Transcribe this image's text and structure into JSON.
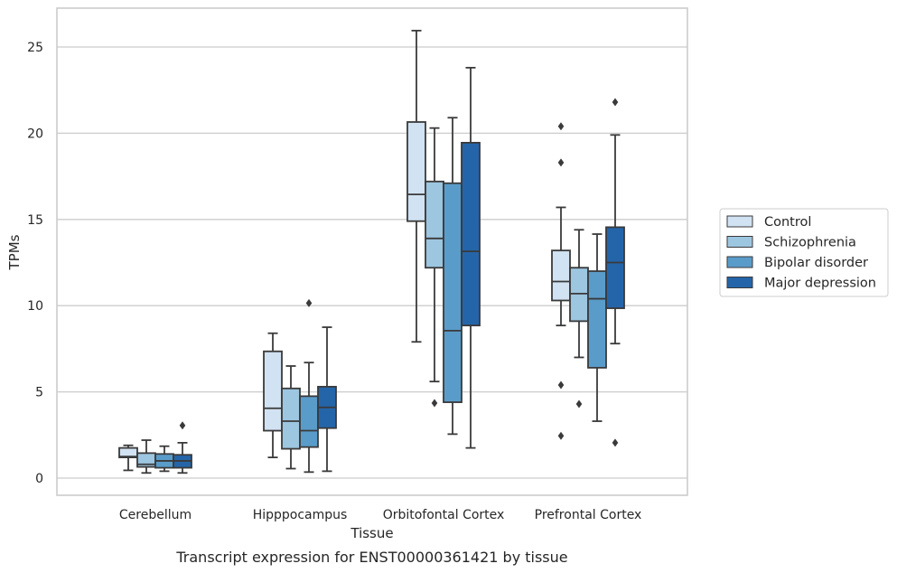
{
  "chart_data": {
    "type": "boxplot",
    "caption": "Transcript expression for ENST00000361421 by tissue",
    "xlabel": "Tissue",
    "ylabel": "TPMs",
    "ylim": [
      -1,
      27
    ],
    "yticks": [
      0,
      5,
      10,
      15,
      20,
      25
    ],
    "grid": "horizontal",
    "legend_position": "right",
    "categories": [
      "Cerebellum",
      "Hipppocampus",
      "Orbitofontal Cortex",
      "Prefrontal Cortex"
    ],
    "series": [
      {
        "name": "Control",
        "color": "#d1e2f2",
        "boxes": [
          {
            "whislo": 0.45,
            "q1": 1.2,
            "med": 1.25,
            "q3": 1.75,
            "whishi": 1.9,
            "fliers": []
          },
          {
            "whislo": 1.2,
            "q1": 2.75,
            "med": 4.05,
            "q3": 7.35,
            "whishi": 8.4,
            "fliers": []
          },
          {
            "whislo": 7.9,
            "q1": 14.9,
            "med": 16.45,
            "q3": 20.65,
            "whishi": 25.95,
            "fliers": []
          },
          {
            "whislo": 8.85,
            "q1": 10.3,
            "med": 11.4,
            "q3": 13.2,
            "whishi": 15.7,
            "fliers": [
              20.4,
              18.3,
              5.4,
              2.45
            ]
          }
        ]
      },
      {
        "name": "Schizophrenia",
        "color": "#9dc6e0",
        "boxes": [
          {
            "whislo": 0.3,
            "q1": 0.65,
            "med": 0.8,
            "q3": 1.45,
            "whishi": 2.2,
            "fliers": []
          },
          {
            "whislo": 0.55,
            "q1": 1.7,
            "med": 3.3,
            "q3": 5.2,
            "whishi": 6.5,
            "fliers": []
          },
          {
            "whislo": 5.6,
            "q1": 12.2,
            "med": 13.9,
            "q3": 17.2,
            "whishi": 20.3,
            "fliers": [
              4.35
            ]
          },
          {
            "whislo": 7.0,
            "q1": 9.1,
            "med": 10.7,
            "q3": 12.2,
            "whishi": 14.4,
            "fliers": [
              4.3
            ]
          }
        ]
      },
      {
        "name": "Bipolar disorder",
        "color": "#5a9cc9",
        "boxes": [
          {
            "whislo": 0.4,
            "q1": 0.6,
            "med": 1.0,
            "q3": 1.4,
            "whishi": 1.85,
            "fliers": []
          },
          {
            "whislo": 0.35,
            "q1": 1.8,
            "med": 2.75,
            "q3": 4.75,
            "whishi": 6.7,
            "fliers": [
              10.15
            ]
          },
          {
            "whislo": 2.55,
            "q1": 4.4,
            "med": 8.55,
            "q3": 17.1,
            "whishi": 20.9,
            "fliers": []
          },
          {
            "whislo": 3.3,
            "q1": 6.4,
            "med": 10.4,
            "q3": 12.0,
            "whishi": 14.15,
            "fliers": []
          }
        ]
      },
      {
        "name": "Major depression",
        "color": "#2465a9",
        "boxes": [
          {
            "whislo": 0.3,
            "q1": 0.6,
            "med": 1.0,
            "q3": 1.35,
            "whishi": 2.05,
            "fliers": [
              3.05
            ]
          },
          {
            "whislo": 0.4,
            "q1": 2.9,
            "med": 4.1,
            "q3": 5.3,
            "whishi": 8.75,
            "fliers": []
          },
          {
            "whislo": 1.75,
            "q1": 8.85,
            "med": 13.15,
            "q3": 19.45,
            "whishi": 23.8,
            "fliers": []
          },
          {
            "whislo": 7.8,
            "q1": 9.85,
            "med": 12.5,
            "q3": 14.55,
            "whishi": 19.9,
            "fliers": [
              21.8,
              2.05
            ]
          }
        ]
      }
    ]
  }
}
